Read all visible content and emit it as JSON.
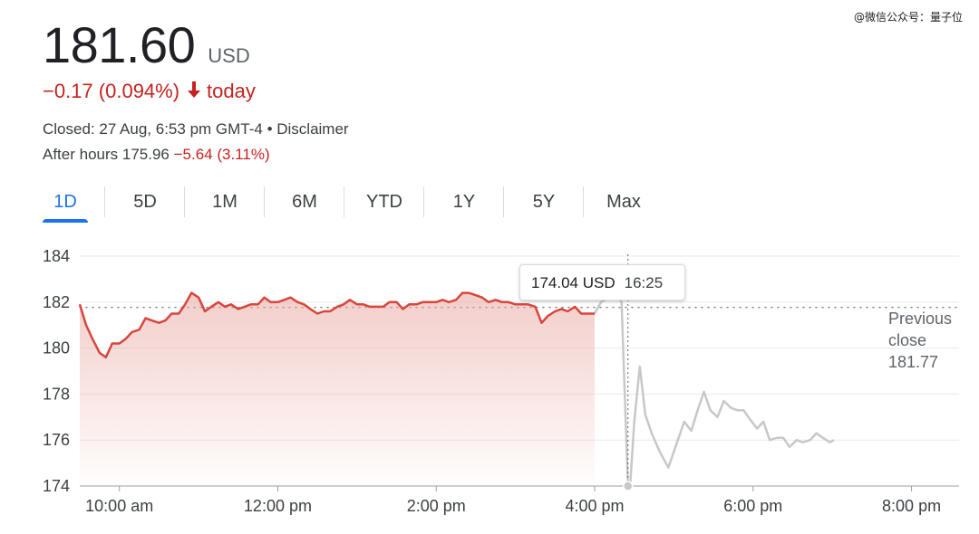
{
  "watermark": "@微信公众号：量子位",
  "quote": {
    "price": "181.60",
    "currency": "USD",
    "change": "−0.17 (0.094%)",
    "change_period": "today",
    "closed_text": "Closed: 27 Aug, 6:53 pm GMT-4 • Disclaimer",
    "after_hours_label": "After hours 175.96",
    "after_hours_change": "−5.64 (3.11%)",
    "negative_color": "#c5221f"
  },
  "tabs": [
    {
      "label": "1D",
      "active": true
    },
    {
      "label": "5D",
      "active": false
    },
    {
      "label": "1M",
      "active": false
    },
    {
      "label": "6M",
      "active": false
    },
    {
      "label": "YTD",
      "active": false
    },
    {
      "label": "1Y",
      "active": false
    },
    {
      "label": "5Y",
      "active": false
    },
    {
      "label": "Max",
      "active": false
    }
  ],
  "tooltip": {
    "price": "174.04 USD",
    "time": "16:25"
  },
  "previous_close": {
    "line1": "Previous",
    "line2": "close",
    "value": "181.77"
  },
  "chart_data": {
    "type": "line",
    "ylim": [
      174,
      184
    ],
    "yticks": [
      "184",
      "182",
      "180",
      "178",
      "176",
      "174"
    ],
    "xlim_hours": [
      9.5,
      20.6
    ],
    "xticks": [
      {
        "label": "10:00 am",
        "h": 10
      },
      {
        "label": "12:00 pm",
        "h": 12
      },
      {
        "label": "2:00 pm",
        "h": 14
      },
      {
        "label": "4:00 pm",
        "h": 16
      },
      {
        "label": "6:00 pm",
        "h": 18
      },
      {
        "label": "8:00 pm",
        "h": 20
      }
    ],
    "previous_close": 181.77,
    "crosshair_hour": 16.42,
    "colors": {
      "regular": "#d9453b",
      "after_hours": "#c8c8c8",
      "fill": "#e8a59f",
      "grid": "#e8eaed",
      "axis": "#9aa0a6"
    },
    "series": [
      {
        "id": "regular",
        "points": [
          [
            9.5,
            181.9
          ],
          [
            9.58,
            181.0
          ],
          [
            9.66,
            180.4
          ],
          [
            9.75,
            179.8
          ],
          [
            9.83,
            179.6
          ],
          [
            9.91,
            180.2
          ],
          [
            10.0,
            180.2
          ],
          [
            10.08,
            180.4
          ],
          [
            10.16,
            180.7
          ],
          [
            10.25,
            180.8
          ],
          [
            10.33,
            181.3
          ],
          [
            10.41,
            181.2
          ],
          [
            10.5,
            181.1
          ],
          [
            10.58,
            181.2
          ],
          [
            10.66,
            181.5
          ],
          [
            10.75,
            181.5
          ],
          [
            10.83,
            181.9
          ],
          [
            10.91,
            182.4
          ],
          [
            11.0,
            182.2
          ],
          [
            11.08,
            181.6
          ],
          [
            11.16,
            181.8
          ],
          [
            11.25,
            182.0
          ],
          [
            11.33,
            181.8
          ],
          [
            11.41,
            181.9
          ],
          [
            11.5,
            181.7
          ],
          [
            11.58,
            181.8
          ],
          [
            11.66,
            181.9
          ],
          [
            11.75,
            181.9
          ],
          [
            11.83,
            182.2
          ],
          [
            11.91,
            182.0
          ],
          [
            12.0,
            182.0
          ],
          [
            12.08,
            182.1
          ],
          [
            12.16,
            182.2
          ],
          [
            12.25,
            182.0
          ],
          [
            12.33,
            181.9
          ],
          [
            12.41,
            181.7
          ],
          [
            12.5,
            181.5
          ],
          [
            12.58,
            181.6
          ],
          [
            12.66,
            181.6
          ],
          [
            12.75,
            181.8
          ],
          [
            12.83,
            181.9
          ],
          [
            12.91,
            182.1
          ],
          [
            13.0,
            181.9
          ],
          [
            13.08,
            181.9
          ],
          [
            13.16,
            181.8
          ],
          [
            13.25,
            181.8
          ],
          [
            13.33,
            181.8
          ],
          [
            13.41,
            182.0
          ],
          [
            13.5,
            182.0
          ],
          [
            13.58,
            181.7
          ],
          [
            13.66,
            181.9
          ],
          [
            13.75,
            181.9
          ],
          [
            13.83,
            182.0
          ],
          [
            13.91,
            182.0
          ],
          [
            14.0,
            182.0
          ],
          [
            14.08,
            182.1
          ],
          [
            14.16,
            182.0
          ],
          [
            14.25,
            182.1
          ],
          [
            14.33,
            182.4
          ],
          [
            14.41,
            182.4
          ],
          [
            14.5,
            182.3
          ],
          [
            14.58,
            182.2
          ],
          [
            14.66,
            182.0
          ],
          [
            14.75,
            182.1
          ],
          [
            14.83,
            182.0
          ],
          [
            14.91,
            182.0
          ],
          [
            15.0,
            181.9
          ],
          [
            15.08,
            181.9
          ],
          [
            15.16,
            181.9
          ],
          [
            15.25,
            181.8
          ],
          [
            15.33,
            181.1
          ],
          [
            15.41,
            181.4
          ],
          [
            15.5,
            181.6
          ],
          [
            15.58,
            181.7
          ],
          [
            15.66,
            181.6
          ],
          [
            15.75,
            181.8
          ],
          [
            15.83,
            181.5
          ],
          [
            15.91,
            181.5
          ],
          [
            16.0,
            181.5
          ]
        ]
      },
      {
        "id": "after_hours",
        "points": [
          [
            16.0,
            181.5
          ],
          [
            16.08,
            182.0
          ],
          [
            16.18,
            182.2
          ],
          [
            16.28,
            182.3
          ],
          [
            16.34,
            182.0
          ],
          [
            16.42,
            174.04
          ],
          [
            16.45,
            174.1
          ],
          [
            16.5,
            176.8
          ],
          [
            16.57,
            179.2
          ],
          [
            16.64,
            177.1
          ],
          [
            16.72,
            176.3
          ],
          [
            16.82,
            175.5
          ],
          [
            16.93,
            174.8
          ],
          [
            17.05,
            176.0
          ],
          [
            17.13,
            176.8
          ],
          [
            17.22,
            176.4
          ],
          [
            17.3,
            177.3
          ],
          [
            17.38,
            178.1
          ],
          [
            17.46,
            177.3
          ],
          [
            17.55,
            177.0
          ],
          [
            17.63,
            177.7
          ],
          [
            17.72,
            177.4
          ],
          [
            17.8,
            177.3
          ],
          [
            17.88,
            177.3
          ],
          [
            17.96,
            176.9
          ],
          [
            18.05,
            176.5
          ],
          [
            18.13,
            176.8
          ],
          [
            18.21,
            176.0
          ],
          [
            18.3,
            176.1
          ],
          [
            18.38,
            176.1
          ],
          [
            18.46,
            175.7
          ],
          [
            18.55,
            176.0
          ],
          [
            18.63,
            175.9
          ],
          [
            18.72,
            176.0
          ],
          [
            18.8,
            176.3
          ],
          [
            18.88,
            176.1
          ],
          [
            18.97,
            175.9
          ],
          [
            19.02,
            176.0
          ]
        ]
      }
    ]
  }
}
